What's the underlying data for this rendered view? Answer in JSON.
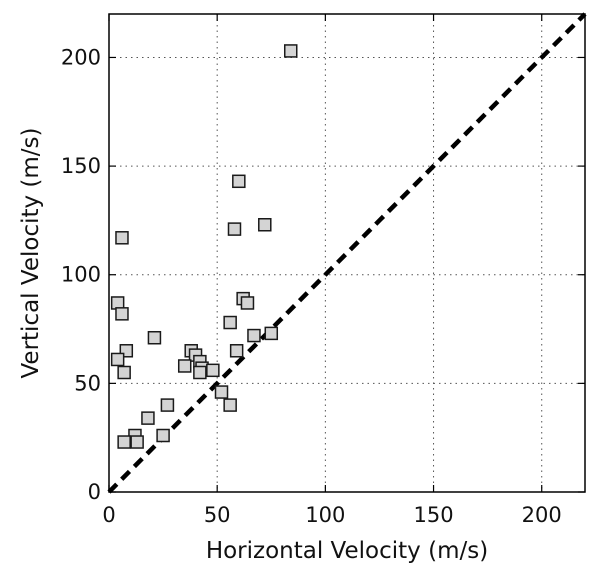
{
  "chart_data": {
    "type": "scatter",
    "title": "",
    "xlabel": "Horizontal Velocity (m/s)",
    "ylabel": "Vertical Velocity (m/s)",
    "xlim": [
      0,
      220
    ],
    "ylim": [
      0,
      220
    ],
    "xticks": [
      "0",
      "50",
      "100",
      "150",
      "200"
    ],
    "yticks": [
      "0",
      "50",
      "100",
      "150",
      "200"
    ],
    "grid": true,
    "marker": "square",
    "marker_color": "#d4d4d4",
    "reference_line": {
      "style": "dashed",
      "color": "#000000",
      "from": [
        0,
        0
      ],
      "to": [
        220,
        220
      ]
    },
    "series": [
      {
        "points": [
          [
            84,
            203
          ],
          [
            60,
            143
          ],
          [
            72,
            123
          ],
          [
            58,
            121
          ],
          [
            6,
            117
          ],
          [
            4,
            87
          ],
          [
            62,
            89
          ],
          [
            64,
            87
          ],
          [
            6,
            82
          ],
          [
            56,
            78
          ],
          [
            75,
            73
          ],
          [
            67,
            72
          ],
          [
            21,
            71
          ],
          [
            8,
            65
          ],
          [
            38,
            65
          ],
          [
            59,
            65
          ],
          [
            40,
            63
          ],
          [
            4,
            61
          ],
          [
            42,
            60
          ],
          [
            35,
            58
          ],
          [
            43,
            57
          ],
          [
            48,
            56
          ],
          [
            7,
            55
          ],
          [
            42,
            55
          ],
          [
            52,
            46
          ],
          [
            27,
            40
          ],
          [
            56,
            40
          ],
          [
            18,
            34
          ],
          [
            12,
            26
          ],
          [
            25,
            26
          ],
          [
            7,
            23
          ],
          [
            13,
            23
          ]
        ]
      }
    ]
  }
}
